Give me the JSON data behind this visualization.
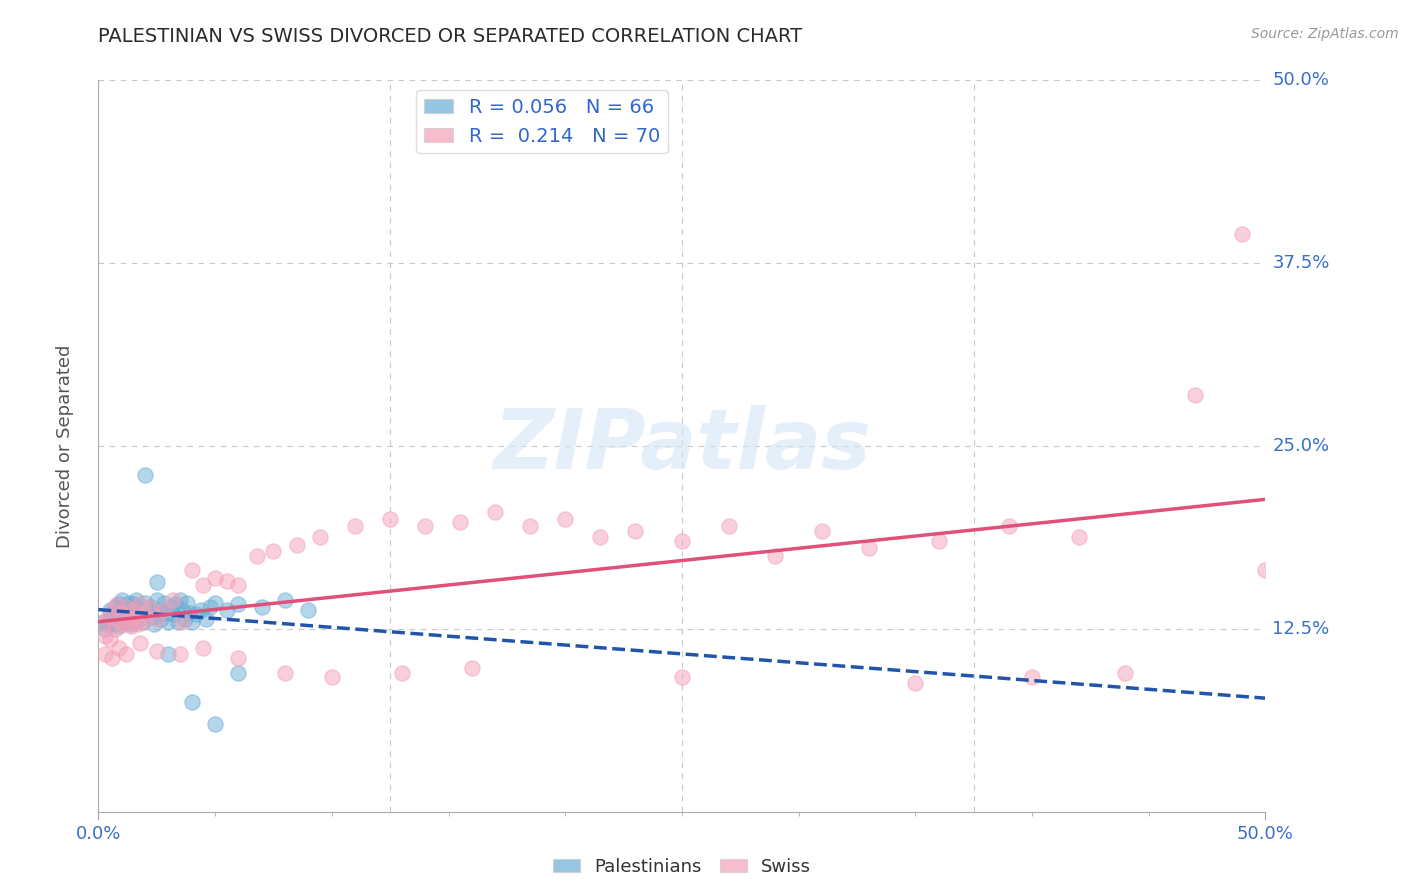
{
  "title": "PALESTINIAN VS SWISS DIVORCED OR SEPARATED CORRELATION CHART",
  "source": "Source: ZipAtlas.com",
  "ylabel": "Divorced or Separated",
  "xlim": [
    0,
    0.5
  ],
  "ylim": [
    0,
    0.5
  ],
  "palestinian_color": "#6baed6",
  "swiss_color": "#f4a0b8",
  "palestinian_line_color": "#2255aa",
  "swiss_line_color": "#e0507a",
  "palestinian_R": 0.056,
  "palestinian_N": 66,
  "swiss_R": 0.214,
  "swiss_N": 70,
  "legend_color": "#3366cc",
  "watermark": "ZIPatlas",
  "background_color": "#ffffff",
  "grid_color": "#c8c8c8",
  "title_color": "#2a2a2a",
  "axis_label_color": "#555555",
  "tick_label_color": "#3a6fc8",
  "palestinian_points_x": [
    0.002,
    0.003,
    0.004,
    0.005,
    0.005,
    0.006,
    0.007,
    0.007,
    0.008,
    0.008,
    0.009,
    0.009,
    0.01,
    0.01,
    0.011,
    0.011,
    0.012,
    0.012,
    0.013,
    0.013,
    0.014,
    0.014,
    0.015,
    0.015,
    0.016,
    0.016,
    0.017,
    0.018,
    0.019,
    0.02,
    0.021,
    0.022,
    0.023,
    0.024,
    0.025,
    0.026,
    0.027,
    0.028,
    0.029,
    0.03,
    0.031,
    0.032,
    0.033,
    0.034,
    0.035,
    0.036,
    0.037,
    0.038,
    0.039,
    0.04,
    0.042,
    0.044,
    0.046,
    0.048,
    0.05,
    0.055,
    0.06,
    0.07,
    0.08,
    0.09,
    0.02,
    0.025,
    0.03,
    0.04,
    0.05,
    0.06
  ],
  "palestinian_points_y": [
    0.13,
    0.125,
    0.128,
    0.132,
    0.138,
    0.135,
    0.14,
    0.128,
    0.133,
    0.138,
    0.142,
    0.127,
    0.135,
    0.145,
    0.132,
    0.14,
    0.138,
    0.13,
    0.143,
    0.136,
    0.128,
    0.14,
    0.135,
    0.142,
    0.13,
    0.145,
    0.133,
    0.138,
    0.13,
    0.143,
    0.136,
    0.14,
    0.133,
    0.128,
    0.145,
    0.138,
    0.132,
    0.143,
    0.136,
    0.13,
    0.14,
    0.135,
    0.142,
    0.13,
    0.145,
    0.138,
    0.132,
    0.143,
    0.136,
    0.13,
    0.135,
    0.138,
    0.132,
    0.14,
    0.143,
    0.138,
    0.142,
    0.14,
    0.145,
    0.138,
    0.23,
    0.157,
    0.108,
    0.075,
    0.06,
    0.095
  ],
  "swiss_points_x": [
    0.002,
    0.003,
    0.004,
    0.005,
    0.006,
    0.007,
    0.008,
    0.009,
    0.01,
    0.011,
    0.012,
    0.013,
    0.014,
    0.015,
    0.016,
    0.017,
    0.018,
    0.019,
    0.02,
    0.022,
    0.025,
    0.028,
    0.032,
    0.036,
    0.04,
    0.045,
    0.05,
    0.055,
    0.06,
    0.068,
    0.075,
    0.085,
    0.095,
    0.11,
    0.125,
    0.14,
    0.155,
    0.17,
    0.185,
    0.2,
    0.215,
    0.23,
    0.25,
    0.27,
    0.29,
    0.31,
    0.33,
    0.36,
    0.39,
    0.42,
    0.003,
    0.006,
    0.009,
    0.012,
    0.018,
    0.025,
    0.035,
    0.045,
    0.06,
    0.08,
    0.1,
    0.13,
    0.16,
    0.25,
    0.35,
    0.4,
    0.44,
    0.47,
    0.49,
    0.5
  ],
  "swiss_points_y": [
    0.128,
    0.12,
    0.133,
    0.118,
    0.138,
    0.125,
    0.142,
    0.13,
    0.135,
    0.128,
    0.14,
    0.132,
    0.127,
    0.138,
    0.133,
    0.128,
    0.142,
    0.13,
    0.135,
    0.14,
    0.132,
    0.138,
    0.145,
    0.13,
    0.165,
    0.155,
    0.16,
    0.158,
    0.155,
    0.175,
    0.178,
    0.182,
    0.188,
    0.195,
    0.2,
    0.195,
    0.198,
    0.205,
    0.195,
    0.2,
    0.188,
    0.192,
    0.185,
    0.195,
    0.175,
    0.192,
    0.18,
    0.185,
    0.195,
    0.188,
    0.108,
    0.105,
    0.112,
    0.108,
    0.115,
    0.11,
    0.108,
    0.112,
    0.105,
    0.095,
    0.092,
    0.095,
    0.098,
    0.092,
    0.088,
    0.092,
    0.095,
    0.285,
    0.395,
    0.165
  ]
}
